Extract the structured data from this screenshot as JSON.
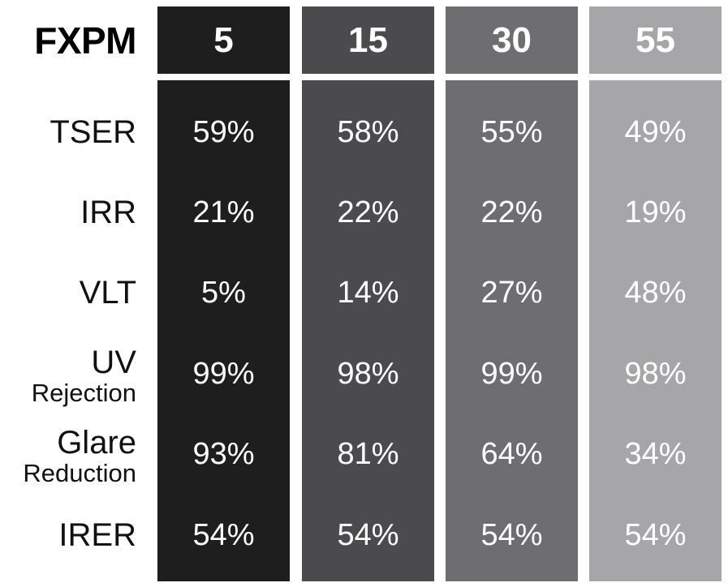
{
  "chart_data": {
    "type": "table",
    "brand": "FXPM",
    "columns": [
      {
        "label": "5",
        "color": "#1e1e1e"
      },
      {
        "label": "15",
        "color": "#4b4b4d"
      },
      {
        "label": "30",
        "color": "#6e6e70"
      },
      {
        "label": "55",
        "color": "#a6a6a8"
      }
    ],
    "rows": [
      {
        "label": "TSER",
        "sub": "",
        "values": [
          "59%",
          "58%",
          "55%",
          "49%"
        ]
      },
      {
        "label": "IRR",
        "sub": "",
        "values": [
          "21%",
          "22%",
          "22%",
          "19%"
        ]
      },
      {
        "label": "VLT",
        "sub": "",
        "values": [
          "5%",
          "14%",
          "27%",
          "48%"
        ]
      },
      {
        "label": "UV",
        "sub": "Rejection",
        "values": [
          "99%",
          "98%",
          "99%",
          "98%"
        ]
      },
      {
        "label": "Glare",
        "sub": "Reduction",
        "values": [
          "93%",
          "81%",
          "64%",
          "34%"
        ]
      },
      {
        "label": "IRER",
        "sub": "",
        "values": [
          "54%",
          "54%",
          "54%",
          "54%"
        ]
      }
    ]
  }
}
